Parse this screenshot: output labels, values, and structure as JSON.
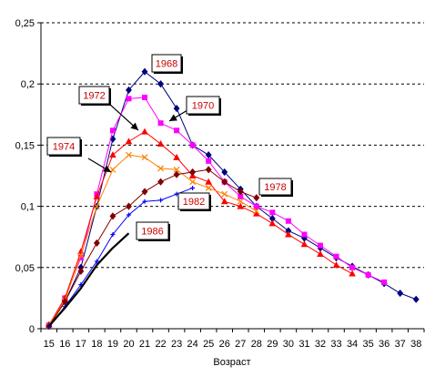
{
  "chart_data": {
    "type": "line",
    "title": "",
    "xlabel": "Возраст",
    "ylabel": "",
    "x": [
      15,
      16,
      17,
      18,
      19,
      20,
      21,
      22,
      23,
      24,
      25,
      26,
      27,
      28,
      29,
      30,
      31,
      32,
      33,
      34,
      35,
      36,
      37,
      38
    ],
    "ylim": [
      0,
      0.25
    ],
    "yticks": [
      "0",
      "0,05",
      "0,1",
      "0,15",
      "0,2",
      "0,25"
    ],
    "grid": "horizontal dashed",
    "legend": "none",
    "series": [
      {
        "name": "1968",
        "color": "#000080",
        "marker": "diamond",
        "values": [
          0.003,
          0.022,
          0.05,
          0.1,
          0.155,
          0.195,
          0.21,
          0.2,
          0.18,
          0.15,
          0.142,
          0.128,
          0.114,
          0.1,
          0.09,
          0.08,
          0.074,
          0.066,
          0.058,
          0.051,
          0.044,
          0.037,
          0.029,
          0.024
        ]
      },
      {
        "name": "1970",
        "color": "#ff00ff",
        "marker": "square",
        "values": [
          0.003,
          0.025,
          0.058,
          0.11,
          0.162,
          0.188,
          0.189,
          0.168,
          0.162,
          0.15,
          0.137,
          0.12,
          0.108,
          0.1,
          0.095,
          0.088,
          0.077,
          0.068,
          0.059,
          0.05,
          0.044,
          0.038,
          null,
          null
        ]
      },
      {
        "name": "1972",
        "color": "#ff0000",
        "marker": "triangle",
        "values": [
          0.003,
          0.025,
          0.063,
          0.108,
          0.142,
          0.153,
          0.161,
          0.151,
          0.14,
          0.125,
          0.12,
          0.104,
          0.1,
          0.094,
          0.086,
          0.077,
          0.069,
          0.061,
          0.052,
          0.045,
          null,
          null,
          null,
          null
        ]
      },
      {
        "name": "1974",
        "color": "#ff8000",
        "marker": "x",
        "values": [
          0.003,
          0.023,
          0.06,
          0.1,
          0.13,
          0.142,
          0.14,
          0.131,
          0.13,
          0.12,
          0.115,
          0.11,
          0.104,
          0.096,
          null,
          null,
          null,
          null,
          null,
          null,
          null,
          null,
          null,
          null
        ]
      },
      {
        "name": "1978",
        "color": "#800000",
        "marker": "diamond",
        "values": [
          0.002,
          0.022,
          0.047,
          0.07,
          0.092,
          0.1,
          0.112,
          0.12,
          0.126,
          0.128,
          0.13,
          0.12,
          0.112,
          0.107,
          null,
          null,
          null,
          null,
          null,
          null,
          null,
          null,
          null,
          null
        ]
      },
      {
        "name": "1982",
        "color": "#0000ff",
        "marker": "plus",
        "values": [
          0.002,
          0.018,
          0.036,
          0.055,
          0.077,
          0.093,
          0.104,
          0.105,
          0.11,
          0.115,
          null,
          null,
          null,
          null,
          null,
          null,
          null,
          null,
          null,
          null,
          null,
          null,
          null,
          null
        ]
      },
      {
        "name": "1986",
        "color": "#000000",
        "marker": "none",
        "values": [
          0.002,
          0.017,
          0.033,
          0.052,
          0.066,
          0.078,
          null,
          null,
          null,
          null,
          null,
          null,
          null,
          null,
          null,
          null,
          null,
          null,
          null,
          null,
          null,
          null,
          null,
          null
        ]
      }
    ],
    "annotations": [
      {
        "label": "1968"
      },
      {
        "label": "1970"
      },
      {
        "label": "1972"
      },
      {
        "label": "1974"
      },
      {
        "label": "1978"
      },
      {
        "label": "1982"
      },
      {
        "label": "1986"
      }
    ]
  }
}
